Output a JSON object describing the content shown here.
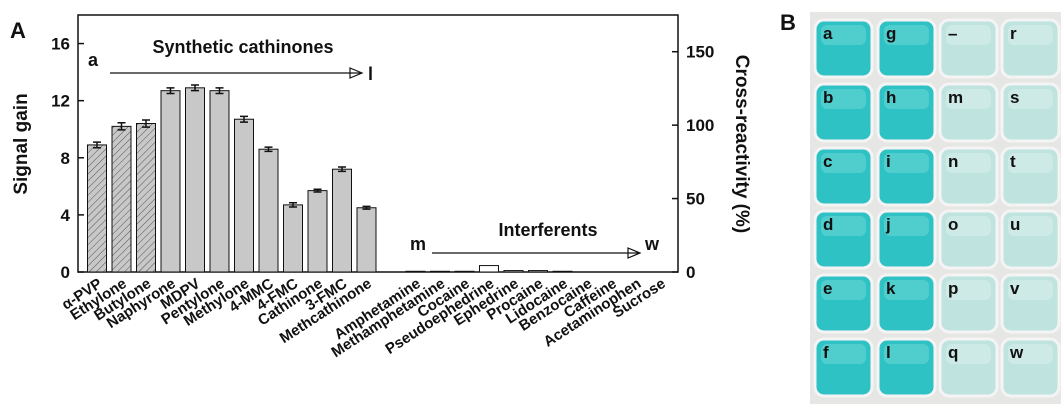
{
  "chart_data": {
    "type": "bar",
    "panel_label": "A",
    "ylabel": "Signal gain",
    "y2label": "Cross-reactivity (%)",
    "categories": [
      "α-PVP",
      "Ethylone",
      "Butylone",
      "Naphyrone",
      "MDPV",
      "Pentylone",
      "Methylone",
      "4-MMC",
      "4-FMC",
      "Cathinone",
      "3-FMC",
      "Methcathinone",
      null,
      "Amphetamine",
      "Methamphetamine",
      "Cocaine",
      "Pseudoephedrine",
      "Ephedrine",
      "Procaine",
      "Lidocaine",
      "Benzocaine",
      "Caffeine",
      "Acetaminophen",
      "Sucrose"
    ],
    "values": [
      8.9,
      10.2,
      10.4,
      12.7,
      12.9,
      12.7,
      10.7,
      8.6,
      4.7,
      5.7,
      7.2,
      4.5,
      null,
      0.05,
      0.05,
      0.05,
      0.45,
      0.1,
      0.1,
      0.05,
      0,
      0,
      0,
      0
    ],
    "errors": [
      0.2,
      0.25,
      0.25,
      0.2,
      0.2,
      0.2,
      0.2,
      0.15,
      0.15,
      0.1,
      0.15,
      0.1,
      null,
      0,
      0,
      0,
      0,
      0,
      0,
      0,
      0,
      0,
      0,
      0
    ],
    "colors": [
      "#c8c8c8",
      "#c8c8c8",
      "#c8c8c8",
      "#c8c8c8",
      "#c8c8c8",
      "#c8c8c8",
      "#c8c8c8",
      "#c8c8c8",
      "#c8c8c8",
      "#c8c8c8",
      "#c8c8c8",
      "#c8c8c8",
      null,
      "#c8c8c8",
      "#c8c8c8",
      "#c8c8c8",
      "#ffffff",
      "#c8c8c8",
      "#c8c8c8",
      "#c8c8c8",
      "#c8c8c8",
      "#c8c8c8",
      "#c8c8c8",
      "#c8c8c8"
    ],
    "hatched": [
      true,
      true,
      true,
      false,
      false,
      false,
      false,
      false,
      false,
      false,
      false,
      false,
      false,
      false,
      false,
      false,
      false,
      false,
      false,
      false,
      false,
      false,
      false,
      false
    ],
    "ylim": [
      0,
      18
    ],
    "yticks": [
      0,
      4,
      8,
      12,
      16
    ],
    "y2lim": [
      0,
      175
    ],
    "y2ticks": [
      0,
      50,
      100,
      150
    ],
    "annotations": {
      "start1": "a",
      "group1": "Synthetic cathinones",
      "end1": "l",
      "start2": "m",
      "group2": "Interferents",
      "end2": "w"
    }
  },
  "plate": {
    "panel_label": "B",
    "wells": [
      [
        "a",
        "g",
        "–",
        "r"
      ],
      [
        "b",
        "h",
        "m",
        "s"
      ],
      [
        "c",
        "i",
        "n",
        "t"
      ],
      [
        "d",
        "j",
        "o",
        "u"
      ],
      [
        "e",
        "k",
        "p",
        "v"
      ],
      [
        "f",
        "l",
        "q",
        "w"
      ]
    ]
  }
}
